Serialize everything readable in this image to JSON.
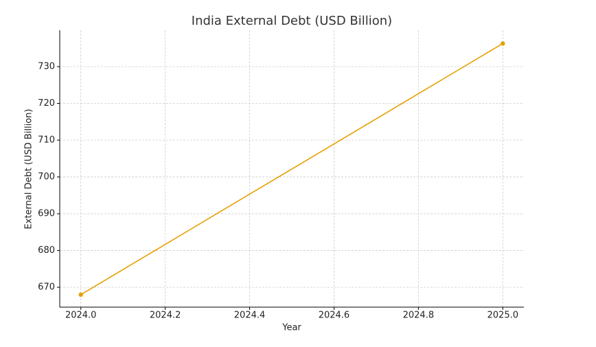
{
  "chart_data": {
    "type": "line",
    "title": "India External Debt (USD Billion)",
    "x_label": "Year",
    "y_label": "External Debt (USD Billion)",
    "x": [
      2024.0,
      2025.0
    ],
    "values": [
      668.0,
      736.3
    ],
    "color": "#e69f00",
    "xlim": [
      2023.95,
      2025.05
    ],
    "xticks": [
      {
        "value": 2024.0,
        "label": "2024.0"
      },
      2024.2,
      2024.4,
      2024.6,
      2024.8,
      {
        "value": 2025.0,
        "label": "2025.0"
      }
    ],
    "ylim": [
      664.6,
      739.9
    ],
    "yticks": [
      670,
      680,
      690,
      700,
      710,
      720,
      730
    ],
    "grid": true
  }
}
